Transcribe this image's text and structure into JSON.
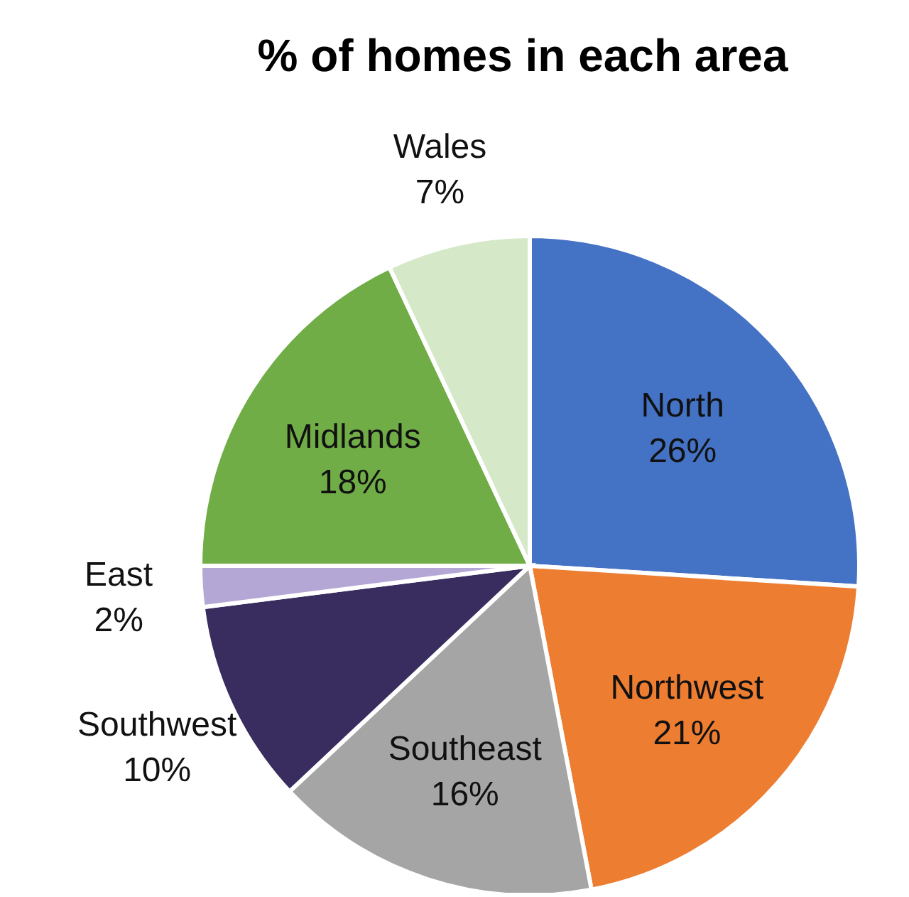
{
  "chart_data": {
    "type": "pie",
    "title": "% of homes in each area",
    "categories": [
      "North",
      "Northwest",
      "Southeast",
      "Southwest",
      "East",
      "Midlands",
      "Wales"
    ],
    "values": [
      26,
      21,
      16,
      10,
      2,
      18,
      7
    ],
    "value_labels": [
      "26%",
      "21%",
      "16%",
      "10%",
      "2%",
      "18%",
      "7%"
    ],
    "colors": [
      "#4472c4",
      "#ed7d31",
      "#a5a5a5",
      "#392c5e",
      "#b4a7d6",
      "#70ad47",
      "#d5e8c8"
    ],
    "legend": false
  }
}
